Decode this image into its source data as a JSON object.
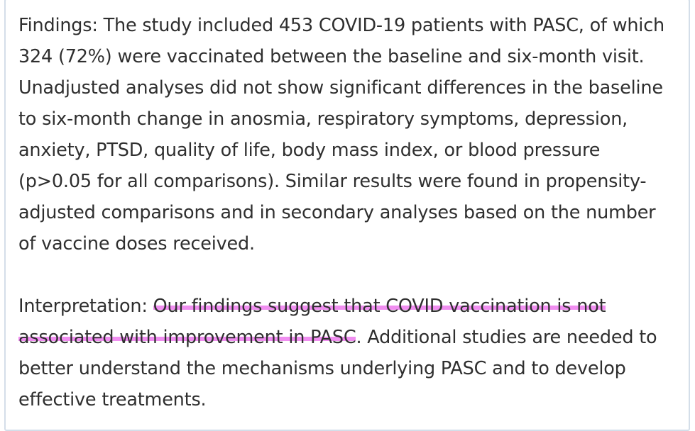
{
  "findings": {
    "label": "Findings:",
    "text": " The study included 453 COVID-19 patients with PASC, of which 324 (72%) were vaccinated between the baseline and six-month visit. Unadjusted analyses did not show significant differences in the baseline to six-month change in anosmia, respiratory symptoms, depression, anxiety, PTSD, quality of life, body mass index, or blood pressure (p>0.05 for all comparisons). Similar results were found in propensity-adjusted comparisons and in secondary analyses based on the number of vaccine doses received."
  },
  "interpretation": {
    "label": "Interpretation:",
    "highlighted": "Our findings suggest that COVID vaccination is not associated with improvement in PASC",
    "rest": ". Additional studies are needed to better understand the mechanisms underlying PASC and to develop effective treatments."
  },
  "colors": {
    "highlight": "#f08ef0",
    "border": "#d4dee9",
    "text": "#2f2f2f"
  }
}
